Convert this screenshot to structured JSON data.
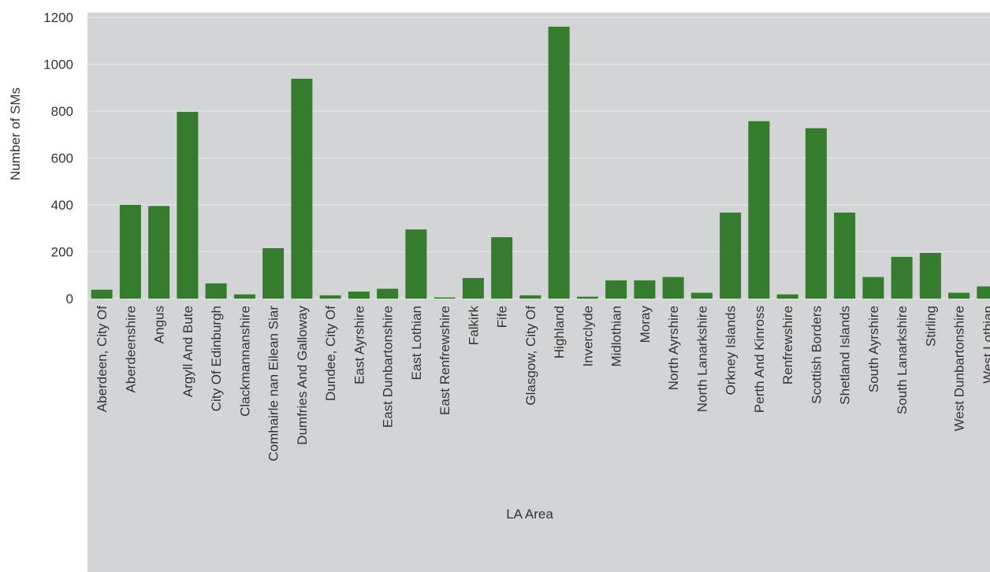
{
  "chart_data": {
    "type": "bar",
    "title": "",
    "xlabel": "LA Area",
    "ylabel": "Number of SMs",
    "ylim": [
      0,
      1200
    ],
    "yticks": [
      0,
      200,
      400,
      600,
      800,
      1000,
      1200
    ],
    "grid": true,
    "bar_color": "#357c2e",
    "background_color": "#d3d4d6",
    "grid_color": "#e6e7e8",
    "categories": [
      "Aberdeen, City Of",
      "Aberdeenshire",
      "Angus",
      "Argyll And Bute",
      "City Of Edinburgh",
      "Clackmannanshire",
      "Comhairle nan Eilean Siar",
      "Dumfries And Galloway",
      "Dundee, City Of",
      "East Ayrshire",
      "East Dunbartonshire",
      "East Lothian",
      "East Renfrewshire",
      "Falkirk",
      "Fife",
      "Glasgow, City Of",
      "Highland",
      "Inverclyde",
      "Midlothian",
      "Moray",
      "North Ayrshire",
      "North Lanarkshire",
      "Orkney Islands",
      "Perth And Kinross",
      "Renfrewshire",
      "Scottish Borders",
      "Shetland Islands",
      "South Ayrshire",
      "South Lanarkshire",
      "Stirling",
      "West Dunbartonshire",
      "West Lothian"
    ],
    "values": [
      38,
      400,
      395,
      797,
      65,
      18,
      215,
      938,
      14,
      30,
      42,
      295,
      5,
      88,
      262,
      14,
      1160,
      8,
      78,
      78,
      92,
      25,
      367,
      757,
      18,
      727,
      367,
      92,
      178,
      195,
      25,
      52
    ]
  }
}
